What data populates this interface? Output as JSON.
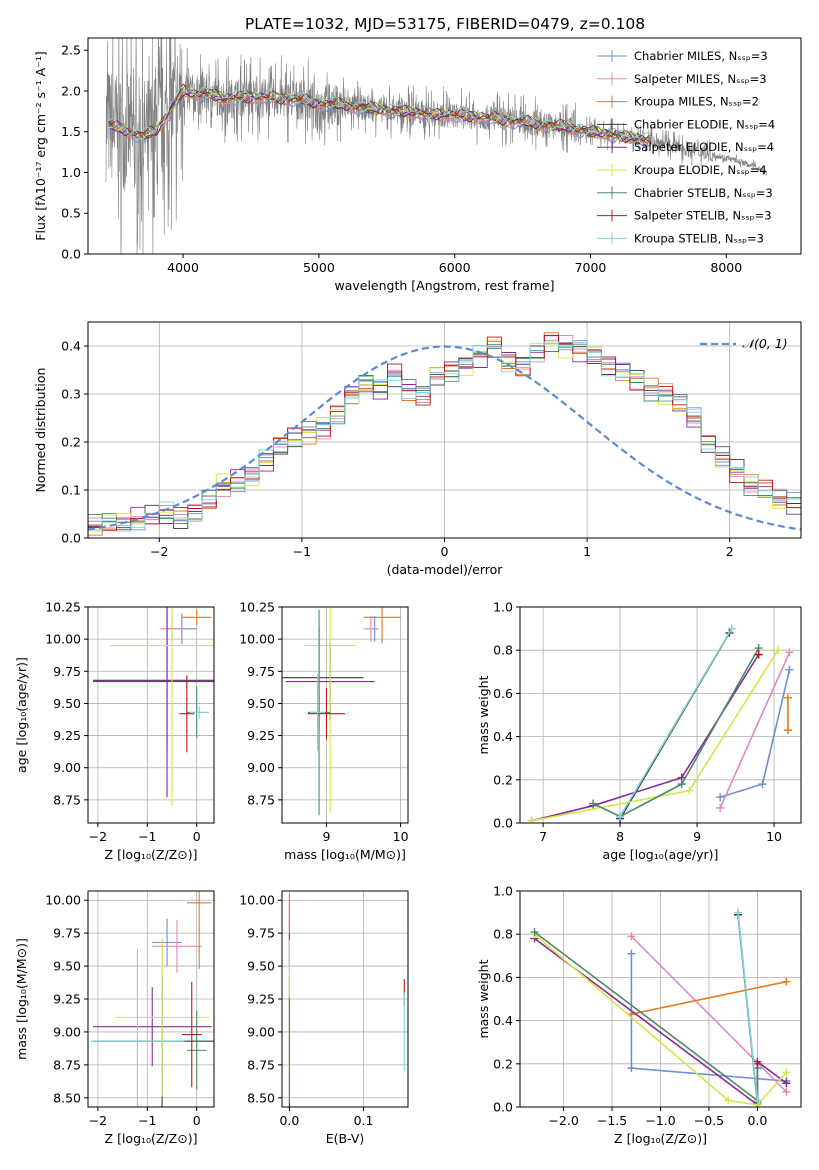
{
  "figure_title": "PLATE=1032, MJD=53175, FIBERID=0479, z=0.108",
  "legend_colors": [
    "#6b8fd6",
    "#e088c0",
    "#e87a1e",
    "#3a3a3a",
    "#8a2a9a",
    "#d4e64a",
    "#4a8a6a",
    "#b81818",
    "#7fd6d6"
  ],
  "chart_data": [
    {
      "type": "line",
      "title": "PLATE=1032, MJD=53175, FIBERID=0479, z=0.108",
      "xlabel": "wavelength [Angstrom, rest frame]",
      "ylabel": "Flux [fλ10⁻¹⁷ erg cm⁻² s⁻¹ A⁻¹]",
      "xlim": [
        3300,
        8550
      ],
      "ylim": [
        0,
        2.65
      ],
      "xticks": [
        4000,
        5000,
        6000,
        7000,
        8000
      ],
      "yticks": [
        0.0,
        0.5,
        1.0,
        1.5,
        2.0,
        2.5
      ],
      "grid": false,
      "legend_position": "top-right",
      "series": [
        {
          "name": "Chabrier MILES, N_SSP=3",
          "color": "#6b8fd6"
        },
        {
          "name": "Salpeter MILES, N_SSP=3",
          "color": "#e088c0"
        },
        {
          "name": "Kroupa MILES, N_SSP=2",
          "color": "#e87a1e"
        },
        {
          "name": "Chabrier ELODIE, N_SSP=4",
          "color": "#3a3a3a"
        },
        {
          "name": "Salpeter ELODIE, N_SSP=4",
          "color": "#8a2a9a"
        },
        {
          "name": "Kroupa ELODIE, N_SSP=4",
          "color": "#d4e64a"
        },
        {
          "name": "Chabrier STELIB, N_SSP=3",
          "color": "#4a8a6a"
        },
        {
          "name": "Salpeter STELIB, N_SSP=3",
          "color": "#b81818"
        },
        {
          "name": "Kroupa STELIB, N_SSP=3",
          "color": "#7fd6d6"
        }
      ],
      "continuum": {
        "x": [
          3400,
          3500,
          3600,
          3700,
          3800,
          3900,
          4000,
          4100,
          4200,
          4300,
          4400,
          4600,
          4800,
          5000,
          5200,
          5400,
          5600,
          5800,
          6000,
          6200,
          6400,
          6600,
          6800,
          7000,
          7200,
          7400,
          7600,
          7800,
          8000,
          8200,
          8300
        ],
        "y": [
          1.63,
          1.55,
          1.5,
          1.45,
          1.5,
          1.75,
          2.0,
          1.95,
          1.97,
          1.9,
          1.92,
          1.92,
          1.9,
          1.85,
          1.82,
          1.78,
          1.75,
          1.72,
          1.7,
          1.68,
          1.64,
          1.6,
          1.56,
          1.5,
          1.45,
          1.4,
          1.33,
          1.25,
          1.18,
          1.08,
          1.0
        ]
      },
      "data_spectrum": {
        "name": "observed data",
        "color": "#808080"
      }
    },
    {
      "type": "line",
      "xlabel": "(data-model)/error",
      "ylabel": "Normed distribution",
      "xlim": [
        -2.5,
        2.5
      ],
      "ylim": [
        0,
        0.45
      ],
      "xticks": [
        -2,
        -1,
        0,
        1,
        2
      ],
      "yticks": [
        0.0,
        0.1,
        0.2,
        0.3,
        0.4
      ],
      "grid": true,
      "legend_position": "top-right",
      "legend_label": "𝒩(0, 1)",
      "gaussian": {
        "mean": 0,
        "sigma": 1,
        "color": "#5b8ad6"
      },
      "histogram": {
        "bin_start": -2.5,
        "bin_width": 0.1,
        "counts": [
          0.025,
          0.03,
          0.032,
          0.04,
          0.045,
          0.05,
          0.04,
          0.05,
          0.08,
          0.11,
          0.12,
          0.13,
          0.16,
          0.19,
          0.21,
          0.22,
          0.23,
          0.26,
          0.3,
          0.32,
          0.31,
          0.34,
          0.31,
          0.3,
          0.34,
          0.35,
          0.36,
          0.38,
          0.4,
          0.37,
          0.36,
          0.39,
          0.41,
          0.4,
          0.39,
          0.38,
          0.36,
          0.35,
          0.33,
          0.31,
          0.3,
          0.28,
          0.25,
          0.2,
          0.17,
          0.14,
          0.11,
          0.1,
          0.08,
          0.07,
          0.06,
          0.05,
          0.045,
          0.04,
          0.035,
          0.03,
          0.028,
          0.025,
          0.02,
          0.018
        ]
      }
    },
    {
      "type": "scatter",
      "xlabel": "Z [log₁₀(Z/Z⊙)]",
      "ylabel": "age  [log₁₀(age/yr)]",
      "xlim": [
        -2.2,
        0.35
      ],
      "ylim": [
        8.57,
        10.25
      ],
      "xticks": [
        -2,
        -1,
        0
      ],
      "yticks": [
        8.75,
        9.0,
        9.25,
        9.5,
        9.75,
        10.0,
        10.25
      ],
      "grid": true,
      "points": [
        {
          "x": -0.3,
          "y": 10.08,
          "xerr": 0.3,
          "yerr": 0.12,
          "color": "#6b8fd6"
        },
        {
          "x": -0.5,
          "y": 10.08,
          "xerr": 0.25,
          "yerr": 0.1,
          "color": "#e088c0"
        },
        {
          "x": 0.0,
          "y": 10.17,
          "xerr": 0.3,
          "yerr": 0.06,
          "color": "#e87a1e"
        },
        {
          "x": -0.6,
          "y": 9.68,
          "xerr": 1.5,
          "yerr": 0.55,
          "color": "#3a3a3a"
        },
        {
          "x": -0.6,
          "y": 9.67,
          "xerr": 1.5,
          "yerr": 0.9,
          "color": "#8a2a9a"
        },
        {
          "x": -0.5,
          "y": 9.95,
          "xerr": 1.25,
          "yerr": 1.25,
          "color": "#d4e64a"
        },
        {
          "x": 0.0,
          "y": 9.43,
          "xerr": 0.2,
          "yerr": 0.2,
          "color": "#4a8a6a"
        },
        {
          "x": -0.2,
          "y": 9.42,
          "xerr": 0.15,
          "yerr": 0.3,
          "color": "#b81818"
        },
        {
          "x": 0.05,
          "y": 9.43,
          "xerr": 0.2,
          "yerr": 0.05,
          "color": "#7fd6d6"
        }
      ]
    },
    {
      "type": "scatter",
      "xlabel": "mass [log₁₀(M/M⊙)]",
      "ylabel": "",
      "xlim": [
        8.4,
        10.1
      ],
      "ylim": [
        8.57,
        10.25
      ],
      "xticks": [
        9,
        10
      ],
      "yticks": [
        8.75,
        9.0,
        9.25,
        9.5,
        9.75,
        10.0,
        10.25
      ],
      "grid": true,
      "points": [
        {
          "x": 9.65,
          "y": 10.08,
          "xerr": 0.05,
          "yerr": 0.1,
          "color": "#6b8fd6"
        },
        {
          "x": 9.6,
          "y": 10.08,
          "xerr": 0.1,
          "yerr": 0.1,
          "color": "#e088c0"
        },
        {
          "x": 9.75,
          "y": 10.17,
          "xerr": 0.25,
          "yerr": 0.2,
          "color": "#e87a1e"
        },
        {
          "x": 8.9,
          "y": 9.7,
          "xerr": 0.6,
          "yerr": 0.4,
          "color": "#3a3a3a"
        },
        {
          "x": 9.05,
          "y": 9.67,
          "xerr": 0.6,
          "yerr": 0.3,
          "color": "#8a2a9a"
        },
        {
          "x": 9.05,
          "y": 9.95,
          "xerr": 0.35,
          "yerr": 1.3,
          "color": "#d4e64a"
        },
        {
          "x": 8.9,
          "y": 9.43,
          "xerr": 0.15,
          "yerr": 0.8,
          "color": "#4a8a6a"
        },
        {
          "x": 9.0,
          "y": 9.42,
          "xerr": 0.25,
          "yerr": 0.2,
          "color": "#b81818"
        },
        {
          "x": 8.88,
          "y": 9.43,
          "xerr": 0.1,
          "yerr": 0.3,
          "color": "#7fd6d6"
        }
      ]
    },
    {
      "type": "line",
      "xlabel": "age  [log₁₀(age/yr)]",
      "ylabel": "mass weight",
      "xlim": [
        6.7,
        10.35
      ],
      "ylim": [
        0,
        1.0
      ],
      "xticks": [
        7,
        8,
        9,
        10
      ],
      "yticks": [
        0.0,
        0.2,
        0.4,
        0.6,
        0.8,
        1.0
      ],
      "grid": true,
      "series": [
        {
          "color": "#6b8fd6",
          "x": [
            9.3,
            9.85,
            10.2
          ],
          "y": [
            0.12,
            0.18,
            0.71
          ]
        },
        {
          "color": "#e088c0",
          "x": [
            9.3,
            10.2
          ],
          "y": [
            0.07,
            0.79
          ]
        },
        {
          "color": "#e87a1e",
          "x": [
            10.18,
            10.18
          ],
          "y": [
            0.43,
            0.58
          ]
        },
        {
          "color": "#3a3a3a",
          "x": [
            8.0,
            9.42
          ],
          "y": [
            0.02,
            0.88
          ]
        },
        {
          "color": "#8a2a9a",
          "x": [
            6.85,
            7.65,
            8.8,
            9.8
          ],
          "y": [
            0.01,
            0.08,
            0.21,
            0.78
          ]
        },
        {
          "color": "#d4e64a",
          "x": [
            6.85,
            8.9,
            10.05
          ],
          "y": [
            0.01,
            0.15,
            0.8
          ]
        },
        {
          "color": "#4a8a6a",
          "x": [
            7.65,
            8.0,
            8.8,
            9.8
          ],
          "y": [
            0.09,
            0.03,
            0.18,
            0.81
          ]
        },
        {
          "color": "#b81818",
          "x": [
            9.8
          ],
          "y": [
            0.78
          ]
        },
        {
          "color": "#7fd6d6",
          "x": [
            8.0,
            9.45
          ],
          "y": [
            0.03,
            0.9
          ]
        }
      ]
    },
    {
      "type": "scatter",
      "xlabel": "Z [log₁₀(Z/Z⊙)]",
      "ylabel": "mass [log₁₀(M/M⊙)]",
      "xlim": [
        -2.2,
        0.35
      ],
      "ylim": [
        8.43,
        10.07
      ],
      "xticks": [
        -2,
        -1,
        0
      ],
      "yticks": [
        8.5,
        8.75,
        9.0,
        9.25,
        9.5,
        9.75,
        10.0
      ],
      "grid": true,
      "points": [
        {
          "x": -0.6,
          "y": 9.68,
          "xerr": 0.3,
          "yerr": 0.18,
          "color": "#6b8fd6"
        },
        {
          "x": -0.4,
          "y": 9.65,
          "xerr": 0.5,
          "yerr": 0.2,
          "color": "#e088c0"
        },
        {
          "x": 0.05,
          "y": 9.98,
          "xerr": 0.25,
          "yerr": 0.5,
          "color": "#e87a1e"
        },
        {
          "x": -0.7,
          "y": 8.93,
          "xerr": 1.4,
          "yerr": 0.5,
          "color": "#3a3a3a"
        },
        {
          "x": -0.9,
          "y": 9.04,
          "xerr": 1.2,
          "yerr": 0.3,
          "color": "#8a2a9a"
        },
        {
          "x": -0.7,
          "y": 9.11,
          "xerr": 0.95,
          "yerr": 0.6,
          "color": "#d4e64a"
        },
        {
          "x": 0.0,
          "y": 8.86,
          "xerr": 0.2,
          "yerr": 0.3,
          "color": "#4a8a6a"
        },
        {
          "x": -0.1,
          "y": 8.98,
          "xerr": 0.2,
          "yerr": 0.4,
          "color": "#b81818"
        },
        {
          "x": -1.2,
          "y": 8.93,
          "xerr": 0.95,
          "yerr": 0.7,
          "color": "#7fd6d6"
        }
      ]
    },
    {
      "type": "scatter",
      "xlabel": "E(B-V)",
      "ylabel": "",
      "xlim": [
        -0.01,
        0.16
      ],
      "ylim": [
        8.43,
        10.07
      ],
      "xticks": [
        0.0,
        0.1
      ],
      "yticks": [
        8.5,
        8.75,
        9.0,
        9.25,
        9.5,
        9.75,
        10.0
      ],
      "grid": true,
      "points": [
        {
          "x": 0.0,
          "y": 9.68,
          "xerr": 0,
          "yerr": 0.18,
          "color": "#6b8fd6"
        },
        {
          "x": 0.0,
          "y": 9.75,
          "xerr": 0,
          "yerr": 0.25,
          "color": "#e088c0"
        },
        {
          "x": 0.0,
          "y": 9.9,
          "xerr": 0,
          "yerr": 0.15,
          "color": "#e87a1e"
        },
        {
          "x": 0.0,
          "y": 8.93,
          "xerr": 0,
          "yerr": 0.5,
          "color": "#3a3a3a"
        },
        {
          "x": 0.0,
          "y": 9.6,
          "xerr": 0,
          "yerr": 0.15,
          "color": "#8a2a9a"
        },
        {
          "x": 0.0,
          "y": 9.1,
          "xerr": 0,
          "yerr": 0.6,
          "color": "#d4e64a"
        },
        {
          "x": 0.0,
          "y": 8.86,
          "xerr": 0,
          "yerr": 0.4,
          "color": "#4a8a6a"
        },
        {
          "x": 0.155,
          "y": 9.3,
          "xerr": 0,
          "yerr": 0.1,
          "color": "#b81818"
        },
        {
          "x": 0.155,
          "y": 9.0,
          "xerr": 0,
          "yerr": 0.3,
          "color": "#7fd6d6"
        }
      ]
    },
    {
      "type": "line",
      "xlabel": "Z [log₁₀(Z/Z⊙)]",
      "ylabel": "mass weight",
      "xlim": [
        -2.45,
        0.45
      ],
      "ylim": [
        0,
        1.0
      ],
      "xticks": [
        -2.0,
        -1.5,
        -1.0,
        -0.5,
        0.0
      ],
      "yticks": [
        0.0,
        0.2,
        0.4,
        0.6,
        0.8,
        1.0
      ],
      "grid": true,
      "series": [
        {
          "color": "#6b8fd6",
          "x": [
            -1.3,
            -1.3,
            0.3,
            0.3
          ],
          "y": [
            0.71,
            0.18,
            0.12,
            0.12
          ]
        },
        {
          "color": "#e088c0",
          "x": [
            -1.3,
            0.3
          ],
          "y": [
            0.79,
            0.07
          ]
        },
        {
          "color": "#e87a1e",
          "x": [
            -1.3,
            0.3
          ],
          "y": [
            0.43,
            0.58
          ]
        },
        {
          "color": "#3a3a3a",
          "x": [
            -0.2,
            0.0
          ],
          "y": [
            0.89,
            0.02
          ]
        },
        {
          "color": "#8a2a9a",
          "x": [
            -2.3,
            0.0,
            0.0,
            0.3
          ],
          "y": [
            0.78,
            0.01,
            0.21,
            0.11
          ]
        },
        {
          "color": "#d4e64a",
          "x": [
            -2.3,
            -0.3,
            0.0,
            0.3
          ],
          "y": [
            0.8,
            0.03,
            0.01,
            0.16
          ]
        },
        {
          "color": "#4a8a6a",
          "x": [
            -2.3,
            0.0,
            0.0
          ],
          "y": [
            0.81,
            0.03,
            0.18
          ]
        },
        {
          "color": "#b81818",
          "x": [
            0.0
          ],
          "y": [
            0.2
          ]
        },
        {
          "color": "#7fd6d6",
          "x": [
            -0.2,
            0.0
          ],
          "y": [
            0.9,
            0.03
          ]
        }
      ]
    }
  ]
}
